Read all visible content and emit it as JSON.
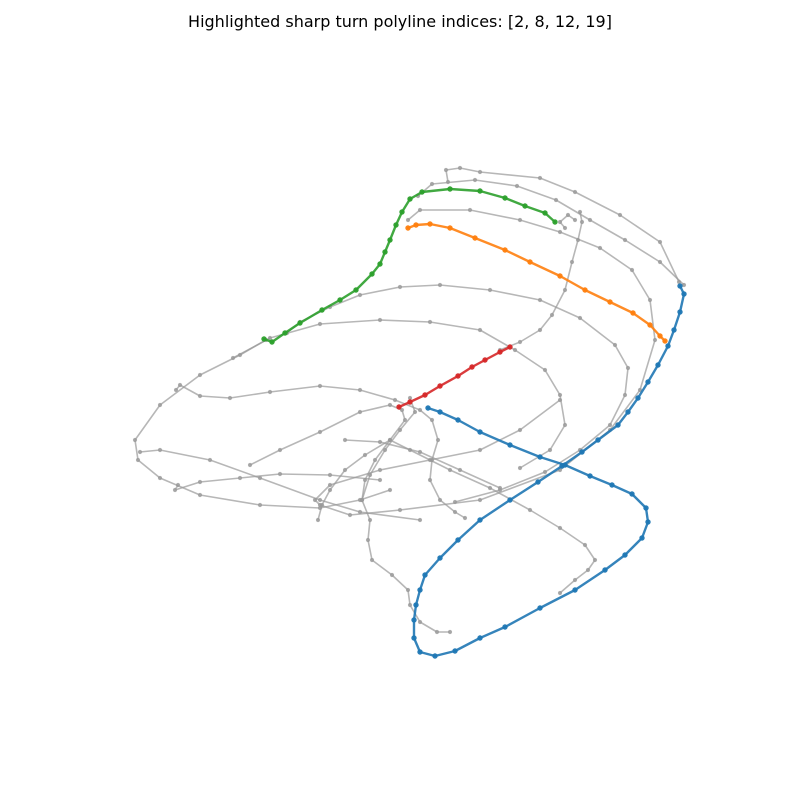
{
  "title": "Highlighted sharp turn polyline indices: [2, 8, 12, 19]",
  "colors": {
    "background": "#gray-placeholder",
    "gray": "#999999",
    "blue": "#1f77b4",
    "orange": "#ff7f0e",
    "green": "#2ca02c",
    "red": "#d62728"
  },
  "chart_data": {
    "type": "line",
    "grid": false,
    "axes_visible": false,
    "highlighted_indices": [
      2,
      8,
      12,
      19
    ],
    "series": [
      {
        "color": "gray",
        "points": [
          [
            418,
            196
          ],
          [
            432,
            184
          ],
          [
            475,
            180
          ],
          [
            517,
            186
          ],
          [
            556,
            200
          ],
          [
            590,
            220
          ],
          [
            625,
            240
          ],
          [
            660,
            262
          ],
          [
            684,
            285
          ]
        ]
      },
      {
        "color": "gray",
        "points": [
          [
            448,
            182
          ],
          [
            446,
            170
          ],
          [
            460,
            168
          ],
          [
            480,
            172
          ],
          [
            540,
            178
          ],
          [
            575,
            192
          ],
          [
            620,
            215
          ],
          [
            660,
            242
          ],
          [
            679,
            282
          ]
        ]
      },
      {
        "color": "gray",
        "points": [
          [
            408,
            220
          ],
          [
            420,
            210
          ],
          [
            470,
            210
          ],
          [
            520,
            220
          ],
          [
            560,
            232
          ],
          [
            600,
            248
          ],
          [
            632,
            270
          ],
          [
            650,
            300
          ],
          [
            655,
            340
          ],
          [
            640,
            390
          ],
          [
            610,
            430
          ],
          [
            560,
            470
          ],
          [
            480,
            500
          ],
          [
            400,
            510
          ],
          [
            350,
            515
          ],
          [
            320,
            505
          ],
          [
            315,
            500
          ],
          [
            330,
            485
          ],
          [
            380,
            470
          ],
          [
            430,
            460
          ],
          [
            480,
            450
          ],
          [
            520,
            430
          ],
          [
            560,
            400
          ]
        ]
      },
      {
        "color": "gray",
        "points": [
          [
            580,
            212
          ],
          [
            582,
            222
          ],
          [
            578,
            240
          ],
          [
            572,
            262
          ],
          [
            565,
            290
          ],
          [
            552,
            315
          ],
          [
            540,
            330
          ],
          [
            520,
            342
          ],
          [
            500,
            350
          ]
        ]
      },
      {
        "color": "gray",
        "points": [
          [
            565,
            228
          ],
          [
            560,
            222
          ],
          [
            568,
            215
          ],
          [
            575,
            220
          ]
        ]
      },
      {
        "color": "gray",
        "points": [
          [
            287,
            333
          ],
          [
            300,
            322
          ],
          [
            330,
            307
          ],
          [
            360,
            295
          ],
          [
            400,
            287
          ],
          [
            440,
            285
          ],
          [
            490,
            290
          ],
          [
            540,
            300
          ],
          [
            580,
            318
          ],
          [
            615,
            345
          ],
          [
            628,
            368
          ],
          [
            625,
            395
          ],
          [
            610,
            425
          ],
          [
            580,
            450
          ],
          [
            545,
            472
          ],
          [
            500,
            490
          ],
          [
            455,
            502
          ]
        ]
      },
      {
        "color": "gray",
        "points": [
          [
            176,
            390
          ],
          [
            180,
            385
          ],
          [
            200,
            396
          ],
          [
            230,
            398
          ],
          [
            270,
            392
          ],
          [
            320,
            386
          ],
          [
            360,
            390
          ],
          [
            395,
            400
          ],
          [
            420,
            410
          ],
          [
            432,
            420
          ],
          [
            438,
            440
          ],
          [
            432,
            460
          ],
          [
            430,
            480
          ],
          [
            440,
            500
          ],
          [
            455,
            512
          ],
          [
            465,
            518
          ]
        ]
      },
      {
        "color": "gray",
        "points": [
          [
            233,
            358
          ],
          [
            270,
            338
          ],
          [
            320,
            324
          ],
          [
            380,
            320
          ],
          [
            430,
            322
          ],
          [
            480,
            330
          ],
          [
            515,
            350
          ],
          [
            545,
            370
          ],
          [
            560,
            395
          ],
          [
            565,
            425
          ],
          [
            550,
            450
          ],
          [
            520,
            468
          ]
        ]
      },
      {
        "color": "gray",
        "points": [
          [
            178,
            485
          ],
          [
            175,
            490
          ],
          [
            200,
            482
          ],
          [
            240,
            478
          ],
          [
            280,
            474
          ],
          [
            330,
            475
          ],
          [
            380,
            480
          ]
        ]
      },
      {
        "color": "gray",
        "points": [
          [
            140,
            452
          ],
          [
            160,
            450
          ],
          [
            210,
            460
          ],
          [
            260,
            478
          ],
          [
            320,
            500
          ],
          [
            360,
            512
          ],
          [
            420,
            520
          ]
        ]
      },
      {
        "color": "gray",
        "points": [
          [
            266,
            340
          ],
          [
            240,
            355
          ],
          [
            200,
            375
          ],
          [
            160,
            405
          ],
          [
            135,
            440
          ],
          [
            138,
            460
          ],
          [
            160,
            478
          ],
          [
            200,
            495
          ],
          [
            260,
            505
          ],
          [
            320,
            508
          ],
          [
            360,
            500
          ],
          [
            390,
            490
          ]
        ]
      },
      {
        "color": "gray",
        "points": [
          [
            250,
            465
          ],
          [
            280,
            450
          ],
          [
            320,
            432
          ],
          [
            360,
            412
          ],
          [
            390,
            405
          ],
          [
            402,
            410
          ],
          [
            405,
            420
          ],
          [
            390,
            440
          ],
          [
            375,
            460
          ],
          [
            365,
            480
          ],
          [
            362,
            500
          ],
          [
            370,
            520
          ],
          [
            368,
            540
          ],
          [
            372,
            560
          ],
          [
            392,
            575
          ],
          [
            408,
            590
          ],
          [
            410,
            605
          ],
          [
            420,
            622
          ],
          [
            437,
            632
          ],
          [
            450,
            632
          ]
        ]
      },
      {
        "color": "gray",
        "points": [
          [
            410,
            398
          ],
          [
            415,
            412
          ],
          [
            400,
            430
          ],
          [
            385,
            450
          ],
          [
            370,
            475
          ],
          [
            362,
            500
          ]
        ]
      },
      {
        "color": "gray",
        "points": [
          [
            318,
            520
          ],
          [
            322,
            505
          ],
          [
            330,
            490
          ],
          [
            345,
            470
          ],
          [
            365,
            455
          ],
          [
            390,
            440
          ],
          [
            410,
            450
          ],
          [
            450,
            470
          ],
          [
            490,
            488
          ],
          [
            530,
            510
          ],
          [
            560,
            528
          ],
          [
            585,
            545
          ],
          [
            595,
            560
          ],
          [
            588,
            570
          ],
          [
            575,
            580
          ],
          [
            560,
            593
          ]
        ]
      },
      {
        "color": "gray",
        "points": [
          [
            345,
            440
          ],
          [
            380,
            442
          ],
          [
            420,
            452
          ],
          [
            460,
            470
          ],
          [
            500,
            488
          ]
        ]
      },
      {
        "color": "blue",
        "points": [
          [
            680,
            286
          ],
          [
            684,
            294
          ],
          [
            680,
            312
          ],
          [
            674,
            330
          ],
          [
            668,
            346
          ],
          [
            658,
            365
          ],
          [
            648,
            382
          ],
          [
            638,
            398
          ],
          [
            628,
            412
          ],
          [
            618,
            425
          ],
          [
            598,
            440
          ],
          [
            582,
            452
          ],
          [
            562,
            466
          ],
          [
            538,
            482
          ],
          [
            510,
            500
          ],
          [
            480,
            520
          ],
          [
            458,
            540
          ],
          [
            440,
            558
          ],
          [
            425,
            575
          ],
          [
            420,
            590
          ],
          [
            416,
            605
          ],
          [
            414,
            620
          ],
          [
            414,
            638
          ],
          [
            420,
            652
          ],
          [
            435,
            656
          ],
          [
            455,
            651
          ],
          [
            480,
            638
          ],
          [
            505,
            627
          ],
          [
            540,
            608
          ],
          [
            575,
            590
          ],
          [
            605,
            570
          ],
          [
            625,
            555
          ],
          [
            642,
            538
          ],
          [
            648,
            522
          ],
          [
            646,
            508
          ],
          [
            632,
            494
          ],
          [
            612,
            485
          ],
          [
            590,
            476
          ],
          [
            565,
            465
          ],
          [
            540,
            457
          ],
          [
            510,
            445
          ],
          [
            480,
            432
          ],
          [
            458,
            420
          ],
          [
            440,
            412
          ],
          [
            428,
            408
          ]
        ]
      },
      {
        "color": "orange",
        "points": [
          [
            408,
            228
          ],
          [
            416,
            225
          ],
          [
            430,
            224
          ],
          [
            450,
            228
          ],
          [
            475,
            238
          ],
          [
            505,
            250
          ],
          [
            530,
            262
          ],
          [
            560,
            276
          ],
          [
            585,
            290
          ],
          [
            610,
            302
          ],
          [
            633,
            313
          ],
          [
            650,
            325
          ],
          [
            660,
            336
          ],
          [
            665,
            341
          ]
        ]
      },
      {
        "color": "green",
        "points": [
          [
            264,
            339
          ],
          [
            272,
            342
          ],
          [
            285,
            333
          ],
          [
            300,
            323
          ],
          [
            322,
            310
          ],
          [
            340,
            300
          ],
          [
            356,
            290
          ],
          [
            372,
            274
          ],
          [
            380,
            264
          ],
          [
            385,
            252
          ],
          [
            390,
            240
          ],
          [
            396,
            225
          ],
          [
            402,
            212
          ],
          [
            410,
            199
          ],
          [
            422,
            192
          ],
          [
            450,
            189
          ],
          [
            480,
            191
          ],
          [
            505,
            198
          ],
          [
            525,
            206
          ],
          [
            545,
            213
          ],
          [
            555,
            222
          ]
        ]
      },
      {
        "color": "red",
        "points": [
          [
            399,
            407
          ],
          [
            410,
            402
          ],
          [
            425,
            395
          ],
          [
            440,
            386
          ],
          [
            458,
            376
          ],
          [
            472,
            367
          ],
          [
            485,
            360
          ],
          [
            500,
            352
          ],
          [
            510,
            347
          ]
        ]
      }
    ]
  }
}
